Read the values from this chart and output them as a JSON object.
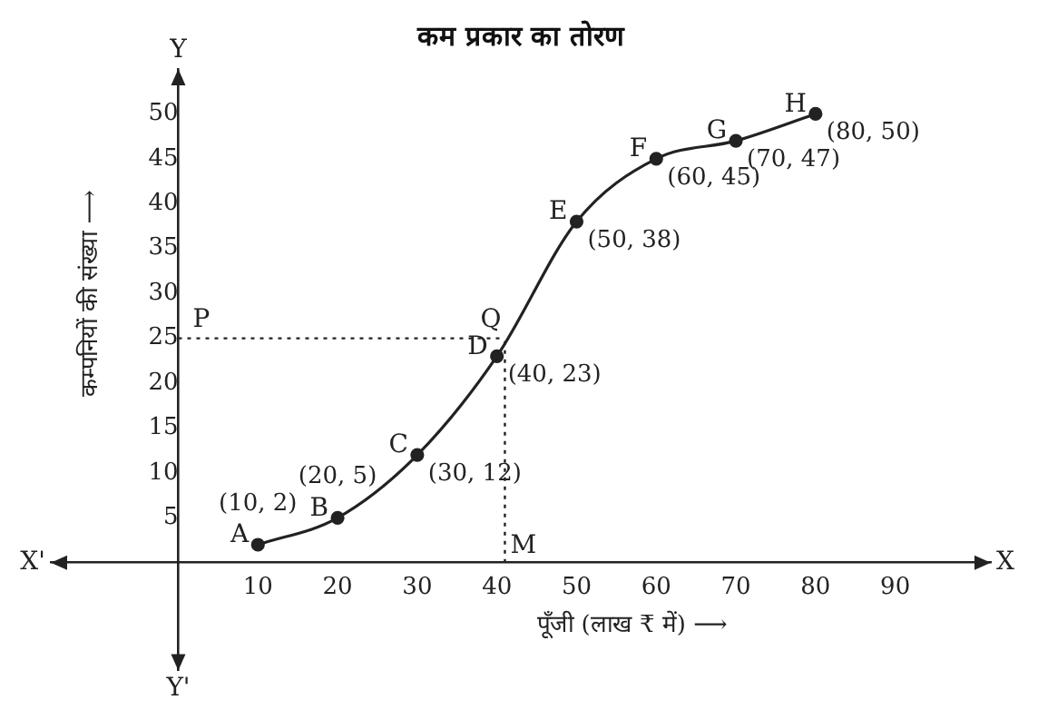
{
  "chart_data": {
    "type": "line",
    "title": "कम प्रकार का तोरण",
    "xlabel": "पूँजी (लाख ₹ में) ⟶",
    "ylabel": "कम्पनियों की संख्या ⟶",
    "x": [
      10,
      20,
      30,
      40,
      50,
      60,
      70,
      80
    ],
    "series": [
      {
        "color": "#222222",
        "values": [
          2,
          5,
          12,
          23,
          38,
          45,
          47,
          50
        ],
        "value_labels": [
          "(10, 2)",
          "(20, 5)",
          "(30, 12)",
          "(40, 23)",
          "(50, 38)",
          "(60, 45)",
          "(70, 47)",
          "(80, 50)"
        ]
      }
    ],
    "xlim": [
      -16,
      102
    ],
    "ylim": [
      -12,
      55
    ],
    "xticks": [
      10,
      20,
      30,
      40,
      50,
      60,
      70,
      80,
      90
    ],
    "yticks": [
      5,
      10,
      15,
      20,
      25,
      30,
      35,
      40,
      45,
      50
    ],
    "marker": "circle",
    "line_style": "solid",
    "ref_lines": [
      {
        "axis": "y",
        "value": 25,
        "label": "P",
        "color": "#222222",
        "line_style": "dotted"
      },
      {
        "axis": "x",
        "value": 41,
        "label": "M",
        "color": "#222222",
        "line_style": "dotted"
      }
    ],
    "annotations": [
      {
        "text": "A",
        "x": 10,
        "y": 2
      },
      {
        "text": "B",
        "x": 20,
        "y": 5
      },
      {
        "text": "C",
        "x": 30,
        "y": 12
      },
      {
        "text": "D",
        "x": 40,
        "y": 23
      },
      {
        "text": "E",
        "x": 50,
        "y": 38
      },
      {
        "text": "F",
        "x": 60,
        "y": 45
      },
      {
        "text": "G",
        "x": 70,
        "y": 47
      },
      {
        "text": "H",
        "x": 80,
        "y": 50
      },
      {
        "text": "Q",
        "x": 41,
        "y": 25
      },
      "X'",
      "X",
      "Y",
      "Y'"
    ]
  }
}
